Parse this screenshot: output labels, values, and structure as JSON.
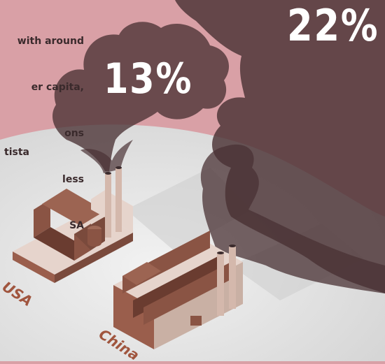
{
  "intro_lines": [
    "with around",
    "er capita,",
    "ons",
    "less",
    "SA"
  ],
  "source_fragment": "tista",
  "countries": [
    {
      "name": "USA",
      "share_label": "13%",
      "share": 13
    },
    {
      "name": "China",
      "share_label": "22%",
      "share": 22
    }
  ],
  "colors": {
    "background_pink": "#d9a0a6",
    "ground_grey": "#e6e6e6",
    "smoke": "#4a3234",
    "factory_brown": "#7a4a3c",
    "factory_light": "#e6d4cc",
    "label_rust": "#a0553e"
  }
}
